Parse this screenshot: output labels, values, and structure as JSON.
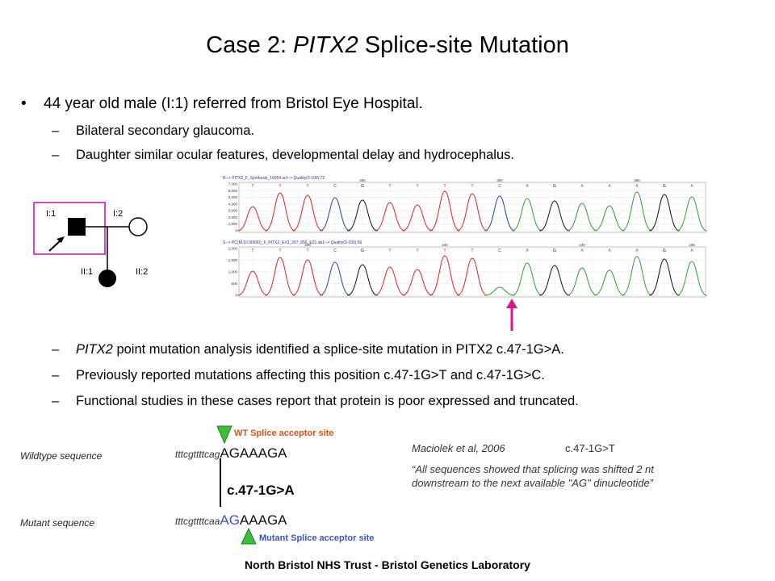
{
  "title": {
    "prefix": "Case 2: ",
    "gene": "PITX2",
    "suffix": " Splice-site Mutation"
  },
  "bullet1": "44 year old male (I:1) referred from Bristol Eye Hospital.",
  "sub1": "Bilateral secondary glaucoma.",
  "sub2": "Daughter similar ocular features, developmental delay and hydrocephalus.",
  "sub3": {
    "gene": "PITX2",
    "rest": " point mutation analysis identified a splice-site mutation in PITX2 c.47-1G>A."
  },
  "sub4": "Previously reported mutations affecting this position c.47-1G>T and c.47-1G>C.",
  "sub5": "Functional studies in these cases report that protein is poor expressed and truncated.",
  "pedigree": {
    "i1": "I:1",
    "i2": "I:2",
    "ii1": "II:1",
    "ii2": "II:2"
  },
  "chromatogram": {
    "top_header": "R--> PITX2_F_Synthesis_16054.scf-->  Quality(0-100):72",
    "bottom_header": "S--> PC(M.10.00690)_F_PITX2_EX3_267_856_E01.ab1-->  Quality(0-100):56",
    "top_yticks": [
      "7,000",
      "6,000",
      "5,000",
      "4,000",
      "3,000",
      "2,000",
      "1,000",
      "0"
    ],
    "bottom_yticks": [
      "2,000",
      "1,500",
      "1,000",
      "500",
      "0"
    ],
    "top_positions": [
      "355",
      "360",
      "365"
    ],
    "bottom_positions": [
      "220",
      "225",
      "230",
      "235"
    ],
    "bases": [
      "T",
      "T",
      "T",
      "C",
      "G",
      "T",
      "T",
      "T",
      "T",
      "C",
      "A",
      "G",
      "A",
      "A",
      "A",
      "G",
      "A"
    ],
    "colors": {
      "A": "#2ca02c",
      "C": "#1f3fbf",
      "G": "#111111",
      "T": "#e02020"
    }
  },
  "arrow_color": "#e0148c",
  "wt_site_label": "WT Splice acceptor site",
  "mut_site_label": "Mutant Splice acceptor site",
  "wildtype_label": "Wildtype sequence",
  "mutant_label": "Mutant sequence",
  "wt_seq_small": "tttcgttttcag",
  "wt_seq_big": "AGAAAGA",
  "mutation": "c.47-1G>A",
  "mut_seq_small": "tttcgttttcaa",
  "mut_seq_ag": "AG",
  "mut_seq_rest": "AAAGA",
  "citation": "Maciolek et al, 2006",
  "citation_mut": "c.47-1G>T",
  "quote_line1": "“All sequences showed that splicing was shifted 2 nt",
  "quote_line2": "downstream to the next available \"AG\" dinucleotide”",
  "footer": "North Bristol NHS Trust - Bristol Genetics Laboratory"
}
